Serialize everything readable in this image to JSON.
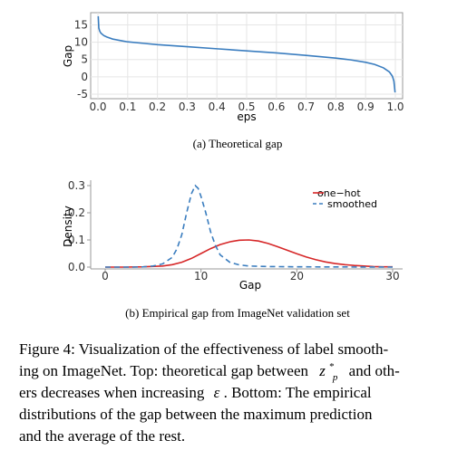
{
  "chart_data": [
    {
      "type": "line",
      "title": "",
      "xlabel": "eps",
      "ylabel": "Gap",
      "xlim": [
        0,
        1
      ],
      "ylim": [
        -5,
        18
      ],
      "x_ticks": [
        "0.0",
        "0.1",
        "0.2",
        "0.3",
        "0.4",
        "0.5",
        "0.6",
        "0.7",
        "0.8",
        "0.9",
        "1.0"
      ],
      "y_ticks": [
        "-5",
        "0",
        "5",
        "10",
        "15"
      ],
      "grid": true,
      "colors": {
        "line": "#3a7dbf"
      },
      "series": [
        {
          "name": "",
          "x": [
            0.001,
            0.003,
            0.006,
            0.01,
            0.02,
            0.03,
            0.05,
            0.08,
            0.1,
            0.15,
            0.2,
            0.3,
            0.4,
            0.5,
            0.6,
            0.7,
            0.8,
            0.85,
            0.9,
            0.93,
            0.96,
            0.98,
            0.99,
            0.995,
            0.999
          ],
          "values": [
            17.5,
            14.1,
            13.2,
            12.6,
            11.9,
            11.5,
            10.9,
            10.4,
            10.1,
            9.7,
            9.3,
            8.7,
            8.1,
            7.5,
            6.9,
            6.2,
            5.4,
            4.9,
            4.2,
            3.6,
            2.6,
            1.4,
            0.2,
            -1.2,
            -4.5
          ]
        }
      ],
      "caption": "(a) Theoretical gap"
    },
    {
      "type": "line",
      "title": "",
      "xlabel": "Gap",
      "ylabel": "Density",
      "xlim": [
        0,
        30
      ],
      "ylim": [
        0,
        0.32
      ],
      "x_ticks": [
        "0",
        "10",
        "20",
        "30"
      ],
      "y_ticks": [
        "0.0",
        "0.1",
        "0.2",
        "0.3"
      ],
      "grid": false,
      "legend_position": "top-right",
      "series": [
        {
          "name": "one−hot",
          "color": "#d62728",
          "style": "solid",
          "x": [
            0,
            2,
            4,
            6,
            7,
            8,
            9,
            10,
            11,
            12,
            13,
            14,
            15,
            16,
            17,
            18,
            19,
            20,
            21,
            22,
            23,
            24,
            25,
            26,
            27,
            28,
            29,
            30
          ],
          "values": [
            0,
            0,
            0.001,
            0.004,
            0.009,
            0.018,
            0.032,
            0.05,
            0.068,
            0.083,
            0.093,
            0.099,
            0.1,
            0.096,
            0.087,
            0.075,
            0.062,
            0.049,
            0.037,
            0.027,
            0.019,
            0.013,
            0.009,
            0.006,
            0.004,
            0.002,
            0.001,
            0.001
          ]
        },
        {
          "name": "smoothed",
          "color": "#3a7dbf",
          "style": "dashed",
          "x": [
            0,
            3,
            4,
            5,
            6,
            7,
            7.5,
            8,
            8.5,
            9,
            9.4,
            9.7,
            10,
            10.5,
            11,
            11.5,
            12,
            13,
            14,
            15,
            17,
            20,
            30
          ],
          "values": [
            0,
            0,
            0.001,
            0.004,
            0.012,
            0.036,
            0.068,
            0.12,
            0.2,
            0.27,
            0.3,
            0.29,
            0.26,
            0.2,
            0.13,
            0.08,
            0.045,
            0.018,
            0.008,
            0.004,
            0.002,
            0.001,
            0
          ]
        }
      ],
      "caption": "(b) Empirical gap from ImageNet validation set"
    }
  ],
  "figure_caption": {
    "lines": [
      "Figure 4: Visualization of the effectiveness of label smooth-",
      "ing on ImageNet. Top: theoretical gap between",
      "ers decreases when increasing",
      "distributions of the gap between the maximum prediction",
      "and the average of the rest."
    ],
    "line2_tail": "and oth-",
    "line3_tail": ". Bottom: The empirical",
    "symbols": {
      "z": "z",
      "sup": "*",
      "sub": "p",
      "eps": "ε"
    }
  }
}
